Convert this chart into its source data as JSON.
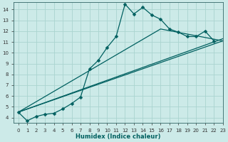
{
  "title": "",
  "xlabel": "Humidex (Indice chaleur)",
  "ylabel": "",
  "bg_color": "#cceae8",
  "grid_color": "#aad4d0",
  "line_color": "#006060",
  "xlim": [
    -0.5,
    23
  ],
  "ylim": [
    3.5,
    14.7
  ],
  "xticks": [
    0,
    1,
    2,
    3,
    4,
    5,
    6,
    7,
    8,
    9,
    10,
    11,
    12,
    13,
    14,
    15,
    16,
    17,
    18,
    19,
    20,
    21,
    22,
    23
  ],
  "yticks": [
    4,
    5,
    6,
    7,
    8,
    9,
    10,
    11,
    12,
    13,
    14
  ],
  "series_marked": {
    "x": [
      0,
      1,
      2,
      3,
      4,
      5,
      6,
      7,
      8,
      9,
      10,
      11,
      12,
      13,
      14,
      15,
      16,
      17,
      18,
      19,
      20,
      21,
      22
    ],
    "y": [
      4.5,
      3.7,
      4.1,
      4.3,
      4.4,
      4.8,
      5.3,
      5.9,
      8.5,
      9.3,
      10.5,
      11.5,
      14.5,
      13.6,
      14.2,
      13.5,
      13.1,
      12.2,
      11.9,
      11.5,
      11.5,
      12.0,
      11.1
    ]
  },
  "line1": {
    "x": [
      0,
      23
    ],
    "y": [
      4.5,
      11.1
    ]
  },
  "line2": {
    "x": [
      0,
      23
    ],
    "y": [
      4.5,
      11.3
    ]
  },
  "line3": {
    "x": [
      0,
      16,
      23
    ],
    "y": [
      4.5,
      12.2,
      11.1
    ]
  }
}
